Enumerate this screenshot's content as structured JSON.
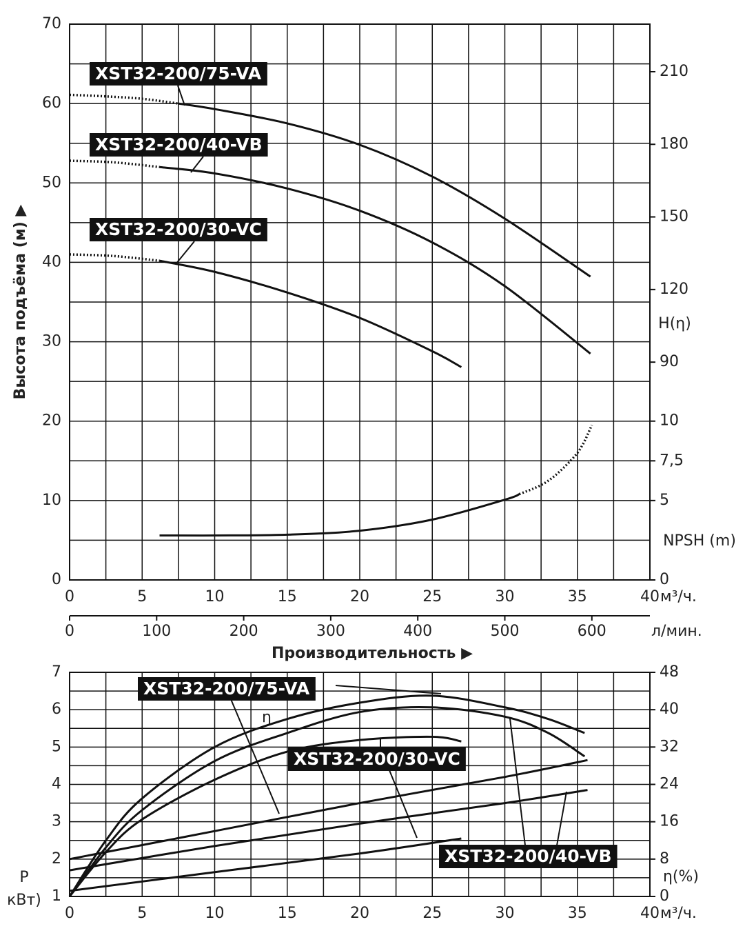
{
  "chart_data": [
    {
      "type": "line",
      "x_label": "Производительность ▶",
      "x_unit": "м³/ч.",
      "xlim": [
        0,
        40
      ],
      "xticks": [
        0,
        5,
        10,
        15,
        20,
        25,
        30,
        35,
        40
      ],
      "x2_unit": "л/мин.",
      "x2lim": [
        0,
        666.67
      ],
      "x2ticks": [
        0,
        100,
        200,
        300,
        400,
        500,
        600
      ],
      "y_label": "Высота подъёма (м) ▶",
      "ylim": [
        0,
        70
      ],
      "yticks": [
        0,
        10,
        20,
        30,
        40,
        50,
        60,
        70
      ],
      "y2_label": "H(η)",
      "y2lim": [
        0,
        229.66
      ],
      "y2ticks": [
        90,
        120,
        150,
        180,
        210
      ],
      "y3_label": "NPSH (m)",
      "y3lim": [
        0,
        35
      ],
      "y3ticks": [
        0,
        5,
        {
          "value": 7.5,
          "label": "7,5"
        },
        10
      ],
      "grid": true,
      "color": "#111111",
      "series": [
        {
          "name": "XST32-200/75-VA",
          "dotted": {
            "x": [
              0,
              2.5,
              5,
              7.5
            ],
            "values": [
              61.1,
              60.9,
              60.6,
              60.0
            ]
          },
          "x": [
            7.5,
            10,
            15,
            20,
            25,
            30,
            35.9
          ],
          "values": [
            60.0,
            59.3,
            57.5,
            54.8,
            50.8,
            45.5,
            38.2
          ]
        },
        {
          "name": "XST32-200/40-VB",
          "dotted": {
            "x": [
              0,
              3,
              6.2
            ],
            "values": [
              52.8,
              52.6,
              52.0
            ]
          },
          "x": [
            6.2,
            10,
            15,
            20,
            25,
            30,
            35.9
          ],
          "values": [
            52.0,
            51.2,
            49.3,
            46.5,
            42.5,
            37.0,
            28.5
          ]
        },
        {
          "name": "XST32-200/30-VC",
          "dotted": {
            "x": [
              0,
              3,
              6.2
            ],
            "values": [
              41.0,
              40.8,
              40.2
            ]
          },
          "x": [
            6.2,
            10,
            15,
            20,
            25,
            27
          ],
          "values": [
            40.2,
            38.8,
            36.2,
            33.0,
            28.8,
            26.8
          ]
        }
      ],
      "npsh": {
        "axis": "y3",
        "x": [
          6.2,
          10,
          15,
          20,
          25,
          30,
          31
        ],
        "values": [
          2.8,
          2.8,
          2.85,
          3.1,
          3.8,
          5.05,
          5.4
        ],
        "dotted": {
          "x": [
            31,
            33,
            35,
            36
          ],
          "values": [
            5.4,
            6.25,
            8.0,
            9.75
          ]
        }
      }
    },
    {
      "type": "line",
      "x_unit": "м³/ч.",
      "xlim": [
        0,
        40
      ],
      "xticks": [
        0,
        5,
        10,
        15,
        20,
        25,
        30,
        35,
        40
      ],
      "y_label": "P",
      "y_unit": "кВт)",
      "ylim": [
        1,
        7
      ],
      "yticks": [
        1,
        2,
        3,
        4,
        5,
        6,
        7
      ],
      "y2_label": "η(%)",
      "y2lim": [
        0,
        48
      ],
      "y2ticks": [
        0,
        8,
        16,
        24,
        32,
        40,
        48
      ],
      "eta_label": "η",
      "grid": true,
      "color": "#111111",
      "series": [
        {
          "name": "XST32-200/75-VA",
          "x": [
            0,
            10,
            20,
            30,
            35.7
          ],
          "values": [
            2.0,
            2.75,
            3.5,
            4.2,
            4.65
          ],
          "efficiency": {
            "axis": "y2",
            "x": [
              0,
              2.5,
              5,
              10,
              15,
              20,
              25,
              30,
              33,
              35.5
            ],
            "values": [
              0,
              12,
              21,
              32,
              38,
              41.5,
              43,
              40.5,
              38,
              35
            ]
          }
        },
        {
          "name": "XST32-200/40-VB",
          "x": [
            0,
            10,
            20,
            30,
            35.7
          ],
          "values": [
            1.7,
            2.35,
            2.95,
            3.5,
            3.85
          ],
          "efficiency": {
            "axis": "y2",
            "x": [
              0,
              2.5,
              5,
              10,
              15,
              20,
              25,
              30,
              33,
              35.5
            ],
            "values": [
              0,
              10.5,
              18.5,
              29,
              35,
              39.5,
              40.5,
              38.5,
              35,
              30
            ]
          }
        },
        {
          "name": "XST32-200/30-VC",
          "x": [
            0,
            10,
            20,
            27
          ],
          "values": [
            1.15,
            1.65,
            2.15,
            2.55
          ],
          "efficiency": {
            "axis": "y2",
            "x": [
              0,
              2.5,
              5,
              10,
              15,
              20,
              25,
              27
            ],
            "values": [
              0,
              9.5,
              16.5,
              25,
              31,
              33.5,
              34.2,
              33.2
            ]
          }
        }
      ]
    }
  ]
}
